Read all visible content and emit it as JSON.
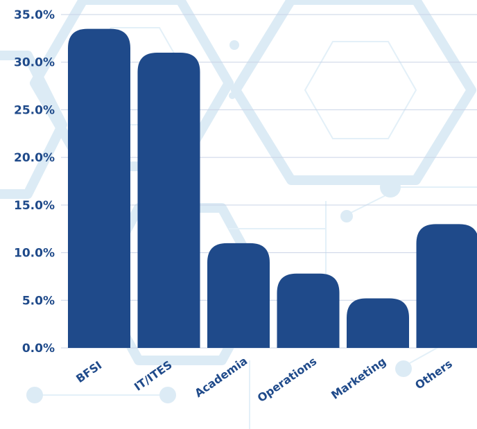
{
  "chart_data": {
    "type": "bar",
    "categories": [
      "BFSI",
      "IT/ITES",
      "Academia",
      "Operations",
      "Marketing",
      "Others"
    ],
    "values": [
      33.5,
      31.0,
      11.0,
      7.8,
      5.2,
      13.0
    ],
    "yticks": [
      "0.0%",
      "5.0%",
      "10.0%",
      "15.0%",
      "20.0%",
      "25.0%",
      "30.0%",
      "35.0%"
    ],
    "ylim": [
      0,
      35
    ],
    "title": "",
    "xlabel": "",
    "ylabel": "",
    "grid": true,
    "bar_color": "#1f4a8a",
    "label_color": "#1f4a8a",
    "grid_color": "#c9d3e6"
  }
}
